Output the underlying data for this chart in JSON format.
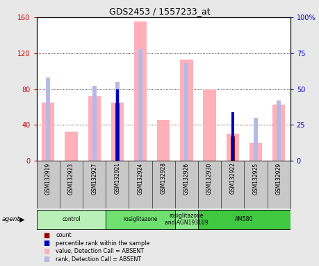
{
  "title": "GDS2453 / 1557233_at",
  "samples": [
    "GSM132919",
    "GSM132923",
    "GSM132927",
    "GSM132921",
    "GSM132924",
    "GSM132928",
    "GSM132926",
    "GSM132930",
    "GSM132922",
    "GSM132925",
    "GSM132929"
  ],
  "groups": [
    {
      "label": "control",
      "start": 0,
      "end": 3,
      "color": "#b8f0b8"
    },
    {
      "label": "rosiglitazone",
      "start": 3,
      "end": 6,
      "color": "#70e070"
    },
    {
      "label": "rosiglitazone\nand AGN193109",
      "start": 6,
      "end": 7,
      "color": "#90e890"
    },
    {
      "label": "AM580",
      "start": 7,
      "end": 11,
      "color": "#40c840"
    }
  ],
  "pink_bars": [
    65,
    33,
    72,
    65,
    155,
    46,
    113,
    80,
    30,
    20,
    63
  ],
  "lightblue_bars": [
    58,
    0,
    52,
    55,
    78,
    0,
    68,
    0,
    0,
    30,
    42
  ],
  "red_bars": [
    0,
    0,
    0,
    64,
    0,
    0,
    0,
    0,
    27,
    0,
    0
  ],
  "blue_bars": [
    0,
    0,
    0,
    50,
    0,
    0,
    0,
    0,
    34,
    0,
    0
  ],
  "ylim_left": [
    0,
    160
  ],
  "ylim_right": [
    0,
    100
  ],
  "yticks_left": [
    0,
    40,
    80,
    120,
    160
  ],
  "yticks_right": [
    0,
    25,
    50,
    75,
    100
  ],
  "yticklabels_left": [
    "0",
    "40",
    "80",
    "120",
    "160"
  ],
  "yticklabels_right": [
    "0",
    "25",
    "50",
    "75",
    "100%"
  ],
  "left_color": "#cc0000",
  "right_color": "#0000cc",
  "pink_color": "#ffb0b8",
  "lightblue_color": "#b8b8e8",
  "red_color": "#990000",
  "blue_color": "#0000bb",
  "background_color": "#e8e8e8",
  "plot_bg": "#ffffff",
  "gray_bg": "#c8c8c8"
}
